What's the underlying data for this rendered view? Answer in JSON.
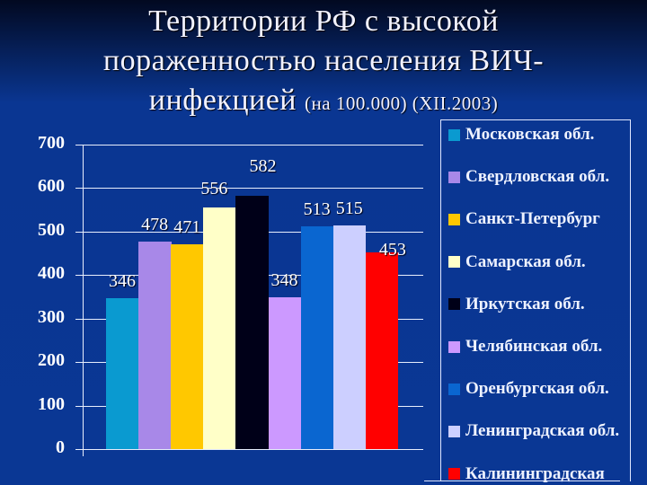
{
  "title": {
    "line1": "Территории РФ с высокой",
    "line2": "пораженностью населения ВИЧ-",
    "line3_main": "инфекцией",
    "line3_small": "(на 100.000) (XII.2003)"
  },
  "chart_data": {
    "type": "bar",
    "title": "Территории РФ с высокой пораженностью населения ВИЧ-инфекцией (на 100.000) (XII.2003)",
    "xlabel": "",
    "ylabel": "",
    "ylim": [
      0,
      700
    ],
    "yticks": [
      "0",
      "100",
      "200",
      "300",
      "400",
      "500",
      "600",
      "700"
    ],
    "grid": true,
    "legend_position": "right",
    "categories": [
      "Московская обл.",
      "Свердловская обл.",
      "Санкт-Петербург",
      "Самарская обл.",
      "Иркутская обл.",
      "Челябинская обл.",
      "Оренбургская обл.",
      "Ленинградская обл.",
      "Калининградская"
    ],
    "values": [
      346,
      478,
      471,
      556,
      582,
      348,
      513,
      515,
      453
    ],
    "value_labels": [
      "346",
      "478",
      "471",
      "556",
      "582",
      "348",
      "513",
      "515",
      "453"
    ],
    "colors": [
      "#0a9ad0",
      "#a888e8",
      "#ffc800",
      "#ffffc8",
      "#000018",
      "#cc99ff",
      "#0a66d0",
      "#cccfff",
      "#ff0000"
    ]
  },
  "legend": {
    "items": [
      {
        "label": "Московская обл.",
        "color": "#0a9ad0"
      },
      {
        "label": "Свердловская обл.",
        "color": "#a888e8"
      },
      {
        "label": "Санкт-Петербург",
        "color": "#ffc800"
      },
      {
        "label": "Самарская обл.",
        "color": "#ffffc8"
      },
      {
        "label": "Иркутская обл.",
        "color": "#000018"
      },
      {
        "label": "Челябинская обл.",
        "color": "#cc99ff"
      },
      {
        "label": "Оренбургская обл.",
        "color": "#0a66d0"
      },
      {
        "label": "Ленинградская обл.",
        "color": "#cccfff"
      },
      {
        "label": "Калининградская",
        "color": "#ff0000"
      }
    ]
  }
}
